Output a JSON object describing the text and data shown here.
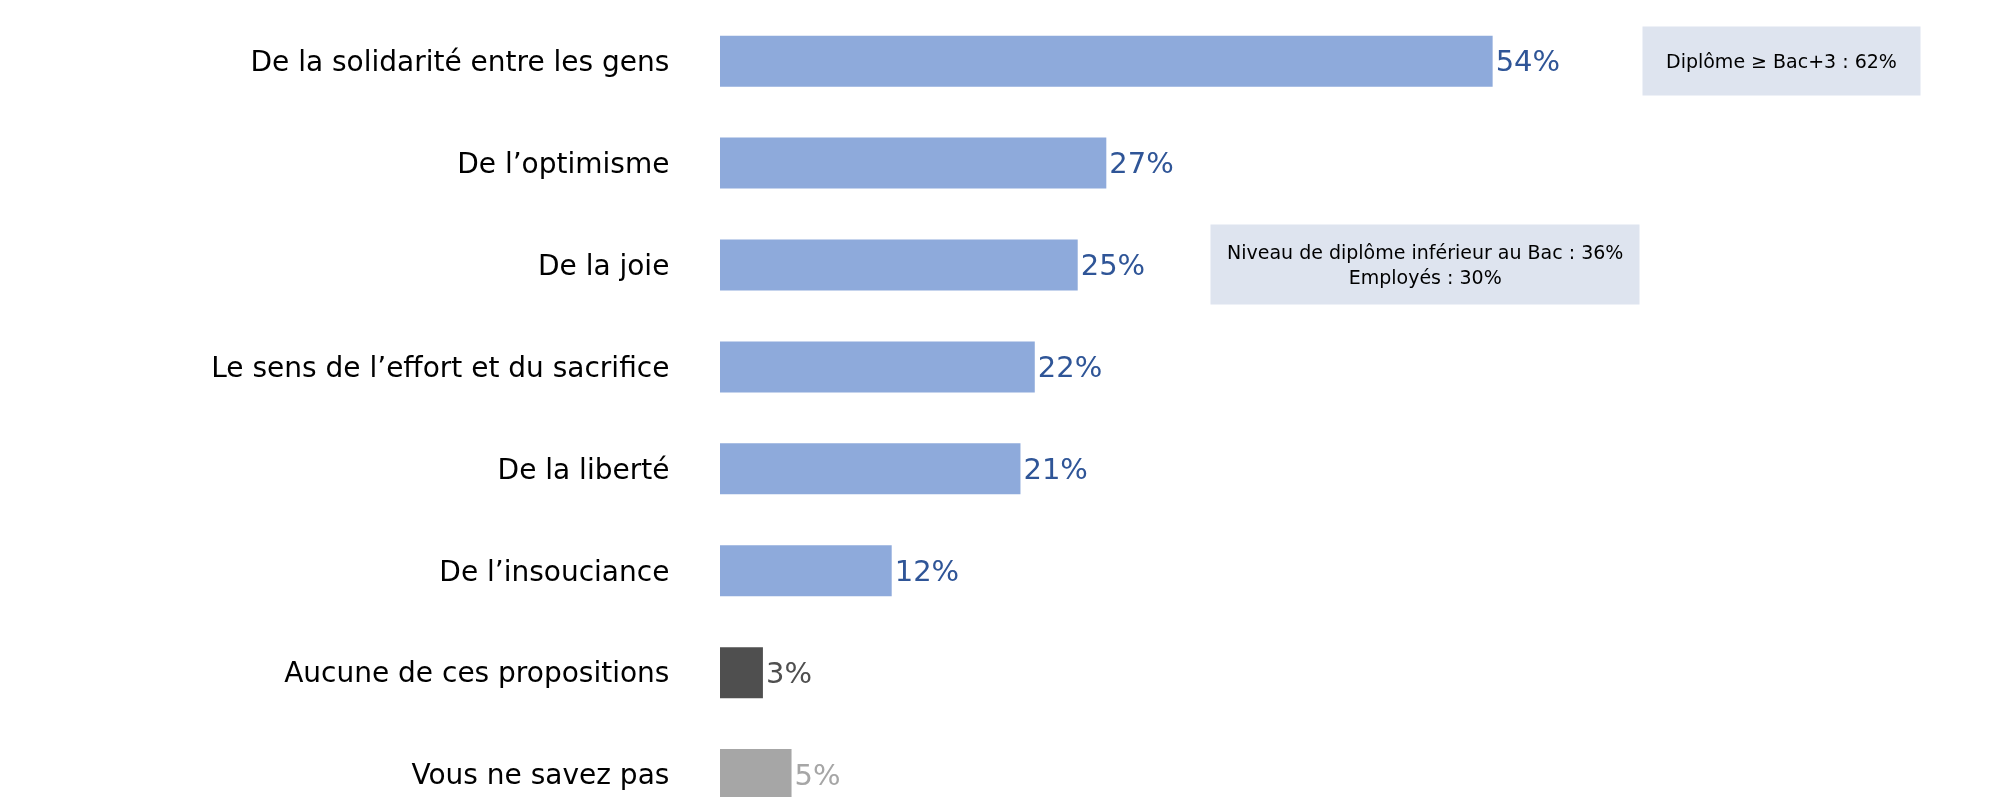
{
  "chart_data": {
    "type": "bar",
    "orientation": "horizontal",
    "legend": false,
    "value_labels": [
      "54%",
      "27%",
      "25%",
      "22%",
      "21%",
      "12%",
      "3%",
      "5%"
    ],
    "categories": [
      "De la solidarité entre les gens",
      "De l’optimisme",
      "De la joie",
      "Le sens de l’effort et du sacrifice",
      "De la liberté",
      "De l’insouciance",
      "Aucune de ces propositions",
      "Vous ne savez pas"
    ],
    "values": [
      54,
      27,
      25,
      22,
      21,
      12,
      3,
      5
    ],
    "colors": [
      "#8eaadb",
      "#8eaadb",
      "#8eaadb",
      "#8eaadb",
      "#8eaadb",
      "#8eaadb",
      "#4f4f4f",
      "#a6a6a6"
    ],
    "annotations": [
      "Diplôme ≥ Bac+3 : 62%",
      "Niveau de diplôme inférieur au Bac : 36%\nEmployés : 30%"
    ]
  }
}
